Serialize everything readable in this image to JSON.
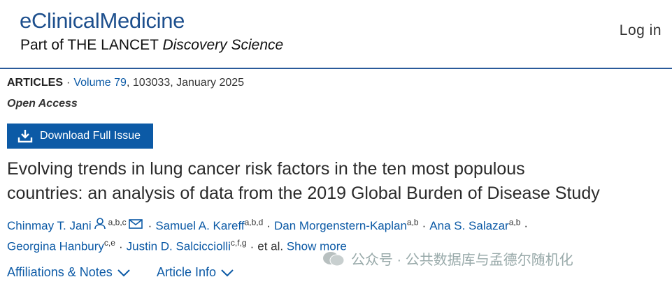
{
  "header": {
    "brand": "eClinicalMedicine",
    "part_of": "Part of THE LANCET",
    "discovery": "Discovery Science",
    "login": "Log in"
  },
  "meta": {
    "section": "ARTICLES",
    "separator": "·",
    "volume": "Volume 79",
    "details": ", 103033, January 2025",
    "access": "Open Access"
  },
  "download_button": "Download Full Issue",
  "title_lines": [
    "Evolving trends in lung cancer risk factors in the ten most populous",
    "countries: an analysis of data from the 2019 Global Burden of Disease Study"
  ],
  "authors": {
    "rows": [
      [
        {
          "name": "Chinmay T. Jani",
          "sup": "a,b,c",
          "icons": true
        },
        {
          "name": "Samuel A. Kareff",
          "sup": "a,b,d"
        },
        {
          "name": "Dan Morgenstern-Kaplan",
          "sup": "a,b"
        },
        {
          "name": "Ana S. Salazar",
          "sup": "a,b"
        }
      ],
      [
        {
          "name": "Georgina Hanbury",
          "sup": "c,e"
        },
        {
          "name": "Justin D. Salcicciolli",
          "sup": "c,f,g"
        }
      ]
    ],
    "et_al": "et al.",
    "show_more": "Show more"
  },
  "tabs": [
    "Affiliations & Notes",
    "Article Info"
  ],
  "watermark": "公众号 · 公共数据库与孟德尔随机化"
}
